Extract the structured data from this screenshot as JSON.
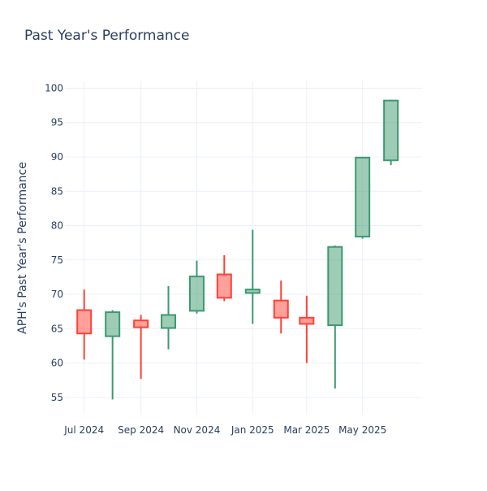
{
  "chart_data": {
    "type": "candlestick",
    "title": "Past Year's Performance",
    "xlabel": "",
    "ylabel": "APH's Past Year's Performance",
    "x_ticks": [
      "Jul 2024",
      "Sep 2024",
      "Nov 2024",
      "Jan 2025",
      "Mar 2025",
      "May 2025"
    ],
    "y_ticks": [
      55,
      60,
      65,
      70,
      75,
      80,
      85,
      90,
      95,
      100
    ],
    "ylim": [
      52.5,
      101
    ],
    "grid": true,
    "legend": "none",
    "colors": {
      "increasing": "#3d9970",
      "decreasing": "#ff4136"
    },
    "candles": [
      {
        "date": "2024-07-01",
        "open": 67.7,
        "high": 70.7,
        "low": 60.5,
        "close": 64.3
      },
      {
        "date": "2024-08-01",
        "open": 63.9,
        "high": 67.7,
        "low": 54.7,
        "close": 67.4
      },
      {
        "date": "2024-09-01",
        "open": 66.2,
        "high": 67.0,
        "low": 57.7,
        "close": 65.2
      },
      {
        "date": "2024-10-01",
        "open": 65.1,
        "high": 71.2,
        "low": 62.0,
        "close": 67.0
      },
      {
        "date": "2024-11-01",
        "open": 67.6,
        "high": 74.9,
        "low": 67.2,
        "close": 72.6
      },
      {
        "date": "2024-12-01",
        "open": 72.9,
        "high": 75.7,
        "low": 69.0,
        "close": 69.5
      },
      {
        "date": "2025-01-01",
        "open": 70.2,
        "high": 79.4,
        "low": 65.7,
        "close": 70.7
      },
      {
        "date": "2025-02-01",
        "open": 69.1,
        "high": 72.0,
        "low": 64.3,
        "close": 66.6
      },
      {
        "date": "2025-03-01",
        "open": 66.6,
        "high": 69.8,
        "low": 60.0,
        "close": 65.7
      },
      {
        "date": "2025-04-01",
        "open": 65.5,
        "high": 77.1,
        "low": 56.3,
        "close": 76.9
      },
      {
        "date": "2025-05-01",
        "open": 78.4,
        "high": 89.9,
        "low": 78.1,
        "close": 89.9
      },
      {
        "date": "2025-06-01",
        "open": 89.5,
        "high": 98.3,
        "low": 88.8,
        "close": 98.2
      }
    ]
  }
}
